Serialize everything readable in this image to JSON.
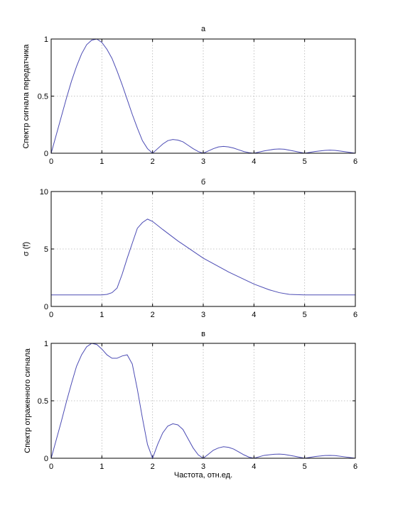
{
  "colors": {
    "series": "#4b4bb4",
    "axes": "#000000",
    "grid": "#b4b4b4"
  },
  "chart_data": [
    {
      "type": "line",
      "title": "а",
      "xlabel": "",
      "ylabel": "Спектр сигнала передатчика",
      "xlim": [
        0,
        6
      ],
      "ylim": [
        0,
        1
      ],
      "xticks": [
        0,
        1,
        2,
        3,
        4,
        5,
        6
      ],
      "yticks": [
        0,
        0.5,
        1
      ],
      "ytick_labels": [
        "0",
        "0.5",
        "1"
      ],
      "grid": true,
      "series": [
        {
          "x": [
            0,
            0.1,
            0.2,
            0.3,
            0.4,
            0.5,
            0.6,
            0.7,
            0.8,
            0.9,
            1.0,
            1.1,
            1.2,
            1.3,
            1.4,
            1.5,
            1.6,
            1.7,
            1.8,
            1.9,
            2.0,
            2.1,
            2.2,
            2.3,
            2.4,
            2.5,
            2.6,
            2.7,
            2.8,
            2.9,
            3.0,
            3.1,
            3.2,
            3.3,
            3.4,
            3.5,
            3.6,
            3.7,
            3.8,
            3.9,
            4.0,
            4.2,
            4.4,
            4.5,
            4.6,
            4.8,
            5.0,
            5.2,
            5.4,
            5.5,
            5.6,
            5.8,
            6.0
          ],
          "y": [
            0,
            0.16,
            0.32,
            0.48,
            0.63,
            0.76,
            0.87,
            0.95,
            0.99,
            1.0,
            0.97,
            0.91,
            0.83,
            0.72,
            0.6,
            0.47,
            0.34,
            0.22,
            0.11,
            0.04,
            0,
            0.04,
            0.08,
            0.11,
            0.12,
            0.115,
            0.1,
            0.07,
            0.04,
            0.015,
            0,
            0.02,
            0.04,
            0.055,
            0.06,
            0.055,
            0.045,
            0.03,
            0.015,
            0.005,
            0,
            0.02,
            0.035,
            0.037,
            0.035,
            0.018,
            0,
            0.015,
            0.025,
            0.027,
            0.025,
            0.013,
            0
          ]
        }
      ]
    },
    {
      "type": "line",
      "title": "б",
      "xlabel": "",
      "ylabel": "σ (f)",
      "xlim": [
        0,
        6
      ],
      "ylim": [
        0,
        10
      ],
      "xticks": [
        0,
        1,
        2,
        3,
        4,
        5,
        6
      ],
      "yticks": [
        0,
        5,
        10
      ],
      "ytick_labels": [
        "0",
        "5",
        "10"
      ],
      "grid": true,
      "series": [
        {
          "x": [
            0,
            0.5,
            1.0,
            1.1,
            1.2,
            1.3,
            1.4,
            1.5,
            1.6,
            1.7,
            1.8,
            1.9,
            2.0,
            2.2,
            2.5,
            3.0,
            3.5,
            4.0,
            4.3,
            4.5,
            4.7,
            5.0,
            5.5,
            6.0
          ],
          "y": [
            1.0,
            1.0,
            1.0,
            1.05,
            1.2,
            1.6,
            2.8,
            4.2,
            5.5,
            6.8,
            7.3,
            7.6,
            7.4,
            6.7,
            5.7,
            4.2,
            3.0,
            1.95,
            1.45,
            1.2,
            1.05,
            1.0,
            1.0,
            1.0
          ]
        }
      ]
    },
    {
      "type": "line",
      "title": "в",
      "xlabel": "Частота, отн.ед.",
      "ylabel": "Спектр отраженного сигнала",
      "xlim": [
        0,
        6
      ],
      "ylim": [
        0,
        1
      ],
      "xticks": [
        0,
        1,
        2,
        3,
        4,
        5,
        6
      ],
      "yticks": [
        0,
        0.5,
        1
      ],
      "ytick_labels": [
        "0",
        "0.5",
        "1"
      ],
      "grid": true,
      "series": [
        {
          "x": [
            0,
            0.1,
            0.2,
            0.3,
            0.4,
            0.5,
            0.6,
            0.7,
            0.8,
            0.9,
            1.0,
            1.1,
            1.2,
            1.3,
            1.4,
            1.5,
            1.6,
            1.7,
            1.8,
            1.9,
            2.0,
            2.1,
            2.2,
            2.3,
            2.4,
            2.5,
            2.6,
            2.7,
            2.8,
            2.9,
            3.0,
            3.1,
            3.2,
            3.3,
            3.4,
            3.5,
            3.6,
            3.7,
            3.8,
            3.9,
            4.0,
            4.2,
            4.4,
            4.5,
            4.6,
            4.8,
            5.0,
            5.2,
            5.4,
            5.5,
            5.6,
            5.8,
            6.0
          ],
          "y": [
            0,
            0.16,
            0.32,
            0.49,
            0.65,
            0.8,
            0.9,
            0.97,
            1.0,
            0.99,
            0.95,
            0.9,
            0.87,
            0.87,
            0.89,
            0.9,
            0.82,
            0.6,
            0.35,
            0.12,
            0,
            0.12,
            0.22,
            0.28,
            0.3,
            0.29,
            0.25,
            0.17,
            0.09,
            0.03,
            0,
            0.035,
            0.07,
            0.09,
            0.1,
            0.095,
            0.08,
            0.055,
            0.03,
            0.01,
            0,
            0.025,
            0.035,
            0.036,
            0.033,
            0.018,
            0,
            0.015,
            0.024,
            0.025,
            0.023,
            0.012,
            0
          ]
        }
      ]
    }
  ]
}
